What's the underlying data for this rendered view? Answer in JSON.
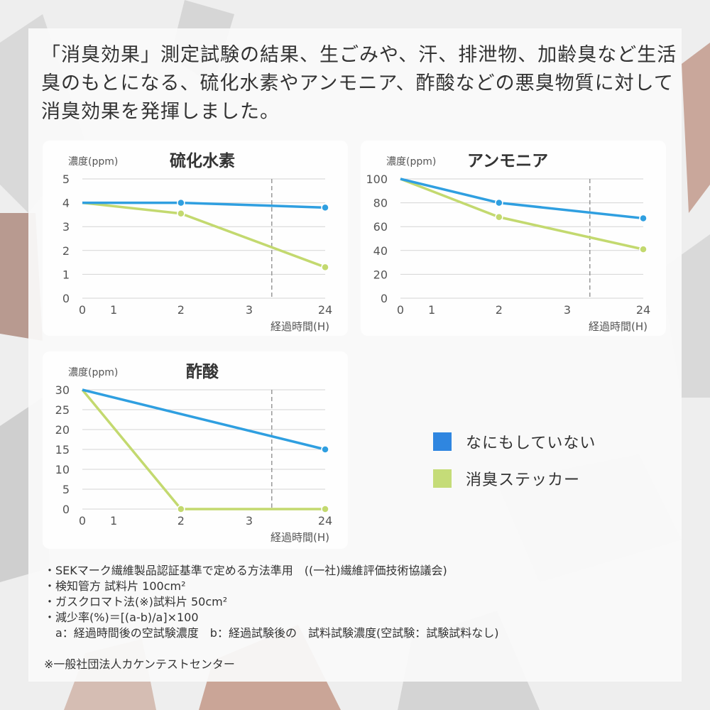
{
  "intro_text": "「消臭効果」測定試験の結果、生ごみや、汗、排泄物、加齢臭など生活臭のもとになる、硫化水素やアンモニア、酢酸などの悪臭物質に対して消臭効果を発揮しました。",
  "colors": {
    "none": "#2f9fe0",
    "sticker": "#c3d96f",
    "legend_none": "#2f86e0",
    "legend_sticker": "#c5dc78"
  },
  "legend": [
    {
      "label": "なにもしていない",
      "color": "#2f86e0"
    },
    {
      "label": "消臭ステッカー",
      "color": "#c5dc78"
    }
  ],
  "chart_data": [
    {
      "type": "line",
      "title": "硫化水素",
      "ylabel": "濃度(ppm)",
      "xlabel": "経過時間(H)",
      "x_ticks": [
        "0",
        "1",
        "2",
        "3",
        "24"
      ],
      "x_axis_break": "between 3 and 24",
      "y_ticks": [
        "0",
        "1",
        "2",
        "3",
        "4",
        "5"
      ],
      "ylim": [
        0,
        5
      ],
      "grid": true,
      "series": [
        {
          "key": "none",
          "x": [
            "0",
            "2",
            "24"
          ],
          "values": [
            4.0,
            4.0,
            3.8
          ],
          "markers": [
            false,
            true,
            true
          ]
        },
        {
          "key": "sticker",
          "x": [
            "0",
            "2",
            "24"
          ],
          "values": [
            4.0,
            3.55,
            1.3
          ],
          "markers": [
            false,
            true,
            true
          ]
        }
      ]
    },
    {
      "type": "line",
      "title": "アンモニア",
      "ylabel": "濃度(ppm)",
      "xlabel": "経過時間(H)",
      "x_ticks": [
        "0",
        "1",
        "2",
        "3",
        "24"
      ],
      "x_axis_break": "between 3 and 24",
      "y_ticks": [
        "0",
        "20",
        "40",
        "60",
        "80",
        "100"
      ],
      "ylim": [
        0,
        100
      ],
      "grid": true,
      "series": [
        {
          "key": "none",
          "x": [
            "0",
            "2",
            "24"
          ],
          "values": [
            100,
            80,
            67
          ],
          "markers": [
            false,
            true,
            true
          ]
        },
        {
          "key": "sticker",
          "x": [
            "0",
            "2",
            "24"
          ],
          "values": [
            100,
            68,
            41
          ],
          "markers": [
            false,
            true,
            true
          ]
        }
      ]
    },
    {
      "type": "line",
      "title": "酢酸",
      "ylabel": "濃度(ppm)",
      "xlabel": "経過時間(H)",
      "x_ticks": [
        "0",
        "1",
        "2",
        "3",
        "24"
      ],
      "x_axis_break": "between 3 and 24",
      "y_ticks": [
        "0",
        "5",
        "10",
        "15",
        "20",
        "25",
        "30"
      ],
      "ylim": [
        0,
        30
      ],
      "grid": true,
      "series": [
        {
          "key": "none",
          "x": [
            "0",
            "24"
          ],
          "values": [
            30,
            15
          ],
          "markers": [
            false,
            true
          ]
        },
        {
          "key": "sticker",
          "x": [
            "0",
            "2",
            "24"
          ],
          "values": [
            30,
            0,
            0
          ],
          "markers": [
            false,
            true,
            true
          ]
        }
      ]
    }
  ],
  "notes": [
    "・SEKマーク繊維製品認証基準で定める方法準用　((一社)繊維評価技術協議会)",
    "・検知管方 試料片 100cm²",
    "・ガスクロマト法(※)試料片 50cm²",
    "・減少率(%)＝[(a-b)/a]×100",
    "　a：経過時間後の空試験濃度　b：経過試験後の　試料試験濃度(空試験：試験試料なし)",
    "",
    "※一般社団法人カケンテストセンター"
  ]
}
